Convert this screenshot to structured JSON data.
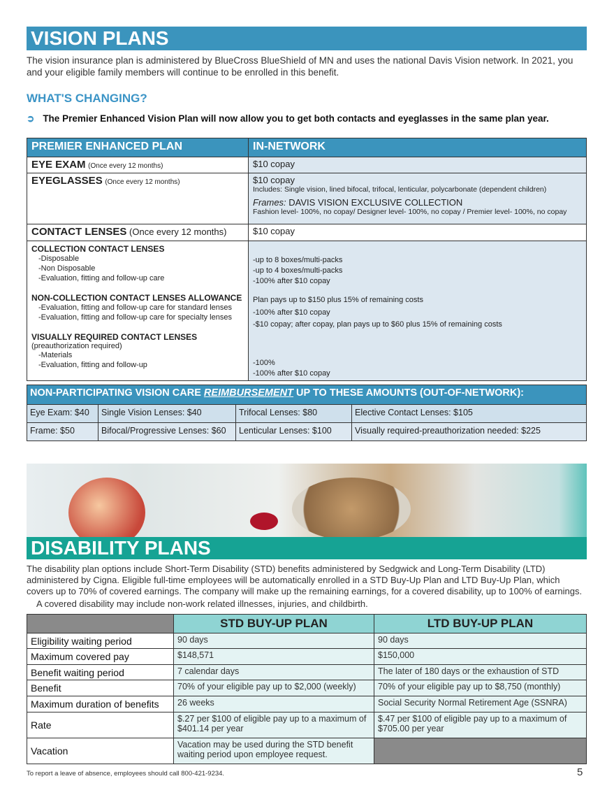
{
  "vision": {
    "title": "VISION PLANS",
    "intro": "The vision insurance plan is administered by BlueCross BlueShield of MN and uses the national Davis Vision network. In 2021, you and your eligible family members will continue to be enrolled in this benefit.",
    "changing_title": "WHAT'S CHANGING?",
    "changing_bullet": "The Premier Enhanced Vision Plan will now allow you to get both contacts and eyeglasses in the same plan year.",
    "table": {
      "headers": [
        "PREMIER ENHANCED PLAN",
        "IN-NETWORK"
      ],
      "eye_exam": {
        "label": "EYE EXAM",
        "freq": "(Once every 12 months)",
        "value": "$10 copay"
      },
      "eyeglasses": {
        "label": "EYEGLASSES",
        "freq": "(Once every 12 months)",
        "value": "$10 copay",
        "includes": "Includes: Single vision, lined bifocal, trifocal, lenticular, polycarbonate (dependent children)",
        "frames_label": "Frames:",
        "frames_value": "DAVIS VISION EXCLUSIVE COLLECTION",
        "frames_levels": "Fashion level- 100%, no copay/ Designer level- 100%, no copay / Premier level- 100%, no copay"
      },
      "contacts": {
        "label": "CONTACT LENSES",
        "freq": "(Once every 12 months)",
        "value": "$10 copay"
      },
      "collection": {
        "title": "COLLECTION CONTACT LENSES",
        "items": [
          "-Disposable",
          "-Non Disposable",
          "-Evaluation, fitting and follow-up care"
        ],
        "values": [
          "-up to 8 boxes/multi-packs",
          "-up to 4 boxes/multi-packs",
          "-100% after $10 copay"
        ]
      },
      "noncollection": {
        "title": "NON-COLLECTION CONTACT LENSES ALLOWANCE",
        "items": [
          "-Evaluation, fitting and follow-up care for standard lenses",
          "-Evaluation, fitting and follow-up care for specialty lenses"
        ],
        "values": [
          "Plan pays up to $150 plus 15% of remaining costs",
          "-100% after $10 copay",
          "-$10 copay; after copay, plan pays up to $60 plus 15% of remaining costs"
        ]
      },
      "visually": {
        "title": "VISUALLY REQUIRED CONTACT LENSES",
        "note": "(preauthorization required)",
        "items": [
          "-Materials",
          "-Evaluation, fitting and follow-up"
        ],
        "values": [
          "-100%",
          "-100% after $10 copay"
        ]
      }
    },
    "reimb": {
      "title_a": "NON-PARTICIPATING VISION CARE ",
      "title_em": "REIMBURSEMENT",
      "title_b": " UP TO THESE AMOUNTS (OUT-OF-NETWORK):",
      "rows": [
        [
          "Eye Exam: $40",
          "Single Vision Lenses: $40",
          "Trifocal Lenses: $80",
          "Elective Contact Lenses: $105"
        ],
        [
          "Frame: $50",
          "Bifocal/Progressive Lenses: $60",
          "Lenticular Lenses: $100",
          "Visually required-preauthorization needed: $225"
        ]
      ]
    }
  },
  "disability": {
    "title": "DISABILITY PLANS",
    "intro": "The disability plan options include Short-Term Disability (STD) benefits administered by Sedgwick and Long-Term Disability (LTD) administered by Cigna. Eligible full-time employees will be automatically enrolled in a STD Buy-Up Plan and LTD Buy-Up Plan, which covers up to 70% of covered earnings. The company will make up the remaining earnings, for a covered disability, up to 100% of earnings.",
    "intro2": "A covered disability may include non-work related illnesses, injuries, and childbirth.",
    "headers": [
      "",
      "STD  BUY-UP PLAN",
      "LTD BUY-UP PLAN"
    ],
    "rows": [
      [
        "Eligibility waiting period",
        "90 days",
        "90 days"
      ],
      [
        "Maximum covered pay",
        "$148,571",
        "$150,000"
      ],
      [
        "Benefit waiting period",
        "7 calendar days",
        "The later of 180 days or the exhaustion of STD"
      ],
      [
        "Benefit",
        "70% of your eligible pay up to $2,000 (weekly)",
        "70% of your eligible pay up to $8,750 (monthly)"
      ],
      [
        "Maximum duration of benefits",
        "26 weeks",
        "Social Security Normal Retirement Age (SSNRA)"
      ],
      [
        "Rate",
        "$.27 per $100 of eligible pay up to a maximum of $401.14 per year",
        "$.47 per $100 of eligible pay up to a maximum of $705.00 per year"
      ],
      [
        "Vacation",
        "Vacation may be used during the STD benefit waiting period upon employee request.",
        ""
      ]
    ]
  },
  "footnote": "To report a leave of absence, employees should call 800-421-9234.",
  "page_number": "5",
  "colors": {
    "vision_blue": "#3b94bd",
    "disability_teal": "#16a394",
    "table_teal": "#8fd4d3"
  }
}
